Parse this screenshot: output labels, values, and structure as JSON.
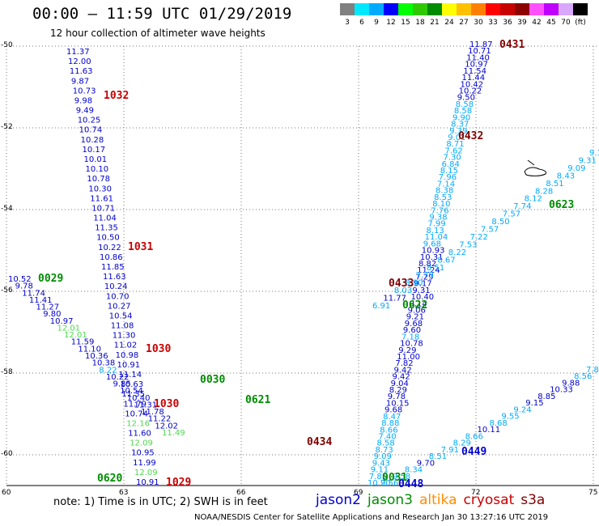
{
  "header": {
    "title": "00:00 – 11:59 UTC 01/29/2019",
    "subtitle": "12 hour collection of altimeter wave heights"
  },
  "scale": {
    "colors": [
      "#808080",
      "#00e8ff",
      "#00aaff",
      "#0000ff",
      "#00ff00",
      "#30c800",
      "#008c00",
      "#ffff00",
      "#ffc000",
      "#ff8000",
      "#ff0000",
      "#c80000",
      "#8c0000",
      "#ff50ff",
      "#c000ff",
      "#d8a8ff",
      "#000000"
    ],
    "labels": [
      "3",
      "6",
      "9",
      "12",
      "15",
      "18",
      "21",
      "24",
      "27",
      "30",
      "33",
      "36",
      "39",
      "42",
      "45",
      "70",
      "(ft)"
    ]
  },
  "axes": {
    "lat_labels": [
      "-50",
      "-52",
      "-54",
      "-56",
      "-58",
      "-60"
    ],
    "lon_labels": [
      "60",
      "63",
      "66",
      "69",
      "72",
      "75"
    ]
  },
  "map": {
    "region": "Southern Indian Ocean, 50°S–60°S, 60°E–75°E",
    "island_label": "Heard Island outline"
  },
  "tracks": {
    "colors": {
      "jason2": "#0000cc",
      "jason3": "#008c00",
      "altika": "#ff8c00",
      "cryosat": "#c80000",
      "s3a": "#800000",
      "light": "#00aaff",
      "pale": "#50d850"
    },
    "t1031_values": [
      "11.37",
      "12.00",
      "11.63",
      "9.87",
      "10.73",
      "9.98",
      "9.49",
      "10.25",
      "10.74",
      "10.28",
      "10.17",
      "10.01",
      "10.10",
      "10.78",
      "10.30",
      "11.61",
      "10.71",
      "11.04",
      "11.35",
      "10.50",
      "10.22",
      "10.86",
      "11.85",
      "11.63",
      "10.24",
      "10.70",
      "10.27",
      "10.54",
      "11.08",
      "11.30",
      "11.02",
      "10.98",
      "10.91",
      "11.14",
      "10.63",
      "11.35",
      "11.79",
      "10.74",
      "12.16",
      "11.60",
      "12.09",
      "10.95",
      "11.99",
      "12.09",
      "10.91"
    ],
    "t0029_values": [
      "10.52",
      "9.78",
      "11.74",
      "11.41",
      "11.27",
      "9.80",
      "10.97",
      "12.01",
      "12.01",
      "11.59",
      "11.10",
      "10.36",
      "10.38",
      "8.22",
      "10.22",
      "9.85",
      "10.54",
      "10.40",
      "11.31",
      "11.78",
      "11.22",
      "12.02",
      "11.49"
    ],
    "t0431_values": [
      "11.87",
      "10.71",
      "11.40",
      "10.97",
      "11.54",
      "11.44",
      "10.42",
      "10.22",
      "9.50",
      "8.58",
      "8.58",
      "9.90",
      "8.37",
      "9.39",
      "9.01",
      "8.71",
      "7.62",
      "7.30",
      "6.84",
      "8.15",
      "7.96",
      "7.14",
      "8.38",
      "8.53",
      "8.10",
      "7.76",
      "9.38",
      "7.99",
      "8.13",
      "11.04",
      "9.68",
      "10.93",
      "10.31",
      "8.82",
      "11.24",
      "7.29",
      "9.17",
      "9.31",
      "10.40",
      "9.14",
      "9.06",
      "9.21",
      "9.68",
      "9.60",
      "7.18",
      "10.78",
      "9.29",
      "11.00",
      "7.82",
      "9.42",
      "9.42",
      "9.04",
      "8.29",
      "9.78",
      "10.15",
      "9.68",
      "8.47",
      "8.88",
      "8.66",
      "7.40",
      "8.58",
      "8.73",
      "9.09",
      "9.43",
      "9.11",
      "7.85",
      "10.20"
    ],
    "t0623_values": [
      "9.19",
      "9.31",
      "9.09",
      "8.43",
      "8.51",
      "8.28",
      "8.12",
      "7.74",
      "7.57",
      "8.50",
      "7.57",
      "7.22",
      "7.53",
      "8.22",
      "8.67",
      "8.51",
      "7.79",
      "8.90",
      "8.03",
      "11.77",
      "6.91"
    ],
    "t0449_values": [
      "7.88",
      "8.56",
      "9.88",
      "10.33",
      "8.85",
      "9.15",
      "9.24",
      "9.55",
      "8.68",
      "10.11",
      "8.66",
      "8.29",
      "7.91",
      "8.51",
      "9.70",
      "8.34",
      "9.58",
      "9.56"
    ],
    "orbit_labels": [
      {
        "text": "0431",
        "track": "s3a"
      },
      {
        "text": "1032",
        "track": "cryosat"
      },
      {
        "text": "0432",
        "track": "s3a"
      },
      {
        "text": "1031",
        "track": "cryosat"
      },
      {
        "text": "0433",
        "track": "s3a"
      },
      {
        "text": "0029",
        "track": "jason3"
      },
      {
        "text": "0622",
        "track": "jason3"
      },
      {
        "text": "0623",
        "track": "jason3"
      },
      {
        "text": "1030",
        "track": "cryosat"
      },
      {
        "text": "0030",
        "track": "jason3"
      },
      {
        "text": "1030",
        "track": "cryosat"
      },
      {
        "text": "0621",
        "track": "jason3"
      },
      {
        "text": "0434",
        "track": "s3a"
      },
      {
        "text": "0449",
        "track": "jason2"
      },
      {
        "text": "0620",
        "track": "jason3"
      },
      {
        "text": "1029",
        "track": "cryosat"
      },
      {
        "text": "0031",
        "track": "jason3"
      },
      {
        "text": "0448",
        "track": "jason2"
      }
    ]
  },
  "note": "note:  1) Time is in UTC;  2) SWH is in feet",
  "legend": [
    {
      "name": "jason2",
      "color": "#0000cc"
    },
    {
      "name": "jason3",
      "color": "#008c00"
    },
    {
      "name": "altika",
      "color": "#ff8c00"
    },
    {
      "name": "cryosat",
      "color": "#c80000"
    },
    {
      "name": "s3a",
      "color": "#800000"
    }
  ],
  "footer": "NOAA/NESDIS Center for Satellite Applications and Research     Jan 30 13:27:16 UTC 2019"
}
